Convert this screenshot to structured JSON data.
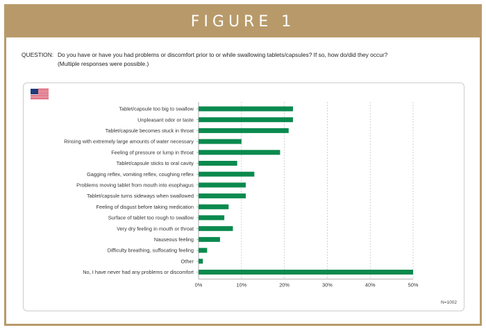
{
  "header": {
    "title": "FIGURE 1"
  },
  "question": {
    "label": "QUESTION:",
    "text": "Do you have or have you had problems or discomfort prior to or while swallowing tablets/capsules? If so, how do/did they occur?",
    "note": "(Multiple responses were possible.)"
  },
  "flag": {
    "icon": "us-flag-icon"
  },
  "chart_data": {
    "type": "bar",
    "orientation": "horizontal",
    "categories": [
      "Tablet/capsule too big to swallow",
      "Unpleasant odor or taste",
      "Tablet/capsule becomes stuck in throat",
      "Rinsing with extremely large amounts of water necessary",
      "Feeling of pressure or lump in throat",
      "Tablet/capsule sticks to oral cavity",
      "Gagging reflex, vomiting reflex, coughing reflex",
      "Problems moving tablet from mouth into esophagus",
      "Tablet/capsule turns sideways when swallowed",
      "Feeling of disgust before taking medication",
      "Surface of tablet too rough to swallow",
      "Very dry feeling in mouth or throat",
      "Nauseous feeling",
      "Difficulty breathing, suffocating feeling",
      "Other",
      "No, I have never had any problems or discomfort"
    ],
    "values": [
      22,
      22,
      21,
      10,
      19,
      9,
      13,
      11,
      11,
      7,
      6,
      8,
      5,
      2,
      1,
      50
    ],
    "xlim": [
      0,
      50
    ],
    "xticks": [
      "0%",
      "10%",
      "20%",
      "30%",
      "40%",
      "50%"
    ],
    "grid": "vertical-dashed",
    "bar_color": "#0a8a4e",
    "note": "N=1002"
  }
}
